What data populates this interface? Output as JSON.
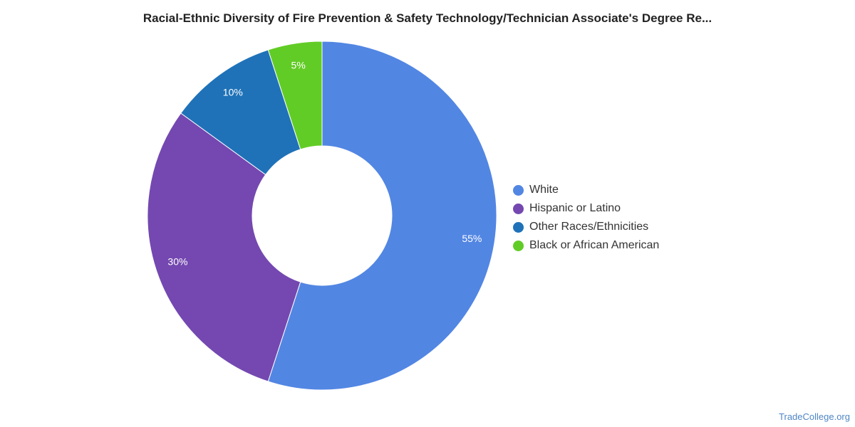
{
  "chart_data": {
    "type": "pie",
    "variant": "donut",
    "title": "Racial-Ethnic Diversity of Fire Prevention & Safety Technology/Technician Associate's Degree Re...",
    "slices": [
      {
        "label": "White",
        "value": 55,
        "display": "55%",
        "color": "#5286e3"
      },
      {
        "label": "Hispanic or Latino",
        "value": 30,
        "display": "30%",
        "color": "#7448b0"
      },
      {
        "label": "Other Races/Ethnicities",
        "value": 10,
        "display": "10%",
        "color": "#1f72b8"
      },
      {
        "label": "Black or African American",
        "value": 5,
        "display": "5%",
        "color": "#62cc26"
      }
    ],
    "legend_position": "right"
  },
  "source": "TradeCollege.org"
}
